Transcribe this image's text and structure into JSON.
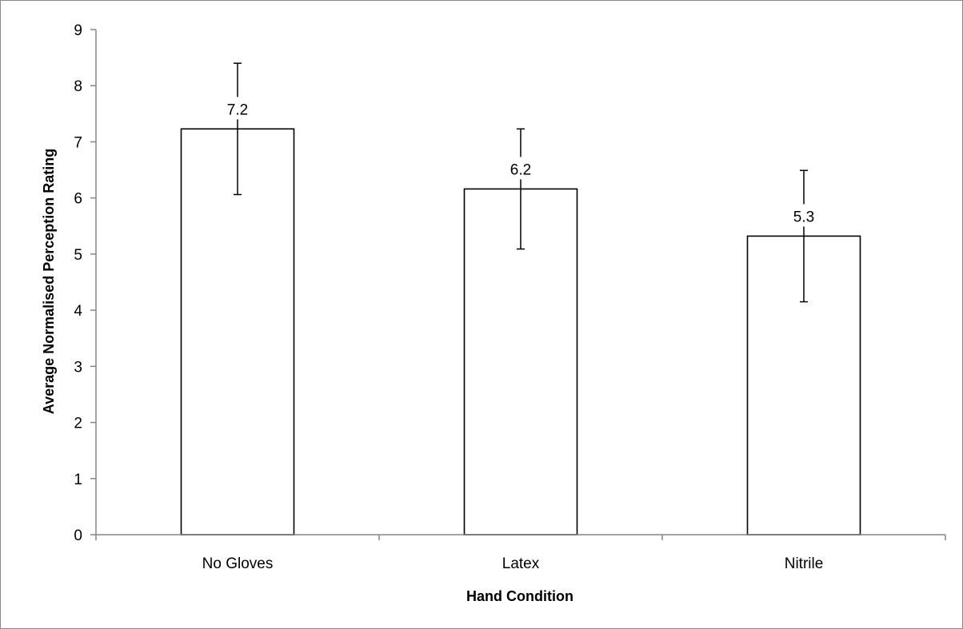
{
  "chart_data": {
    "type": "bar",
    "title": "",
    "xlabel": "Hand Condition",
    "ylabel": "Average Normalised Perception Rating",
    "categories": [
      "No Gloves",
      "Latex",
      "Nitrile"
    ],
    "values": [
      7.23,
      6.16,
      5.32
    ],
    "data_labels": [
      "7.2",
      "6.2",
      "5.3"
    ],
    "error_plus": [
      1.17,
      1.07,
      1.17
    ],
    "error_minus": [
      1.17,
      1.07,
      1.17
    ],
    "ylim": [
      0,
      9
    ],
    "yticks": [
      0,
      1,
      2,
      3,
      4,
      5,
      6,
      7,
      8,
      9
    ],
    "grid": false,
    "legend": "none",
    "bar_fill": "#ffffff",
    "bar_stroke": "#000000"
  }
}
